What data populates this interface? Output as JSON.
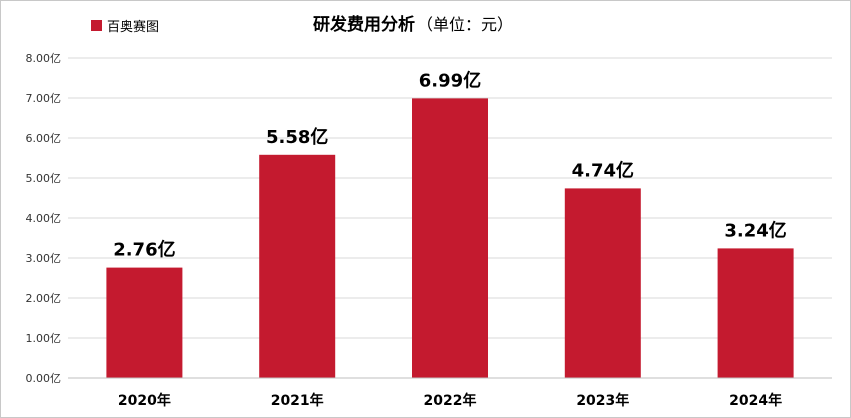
{
  "chart_data": {
    "type": "bar",
    "title": "研发费用分析",
    "title_unit": "（单位：元）",
    "legend": {
      "label": "百奥赛图",
      "position": "top-left"
    },
    "categories": [
      "2020年",
      "2021年",
      "2022年",
      "2023年",
      "2024年"
    ],
    "series": [
      {
        "name": "百奥赛图",
        "values": [
          2.76,
          5.58,
          6.99,
          4.74,
          3.24
        ],
        "data_labels": [
          "2.76亿",
          "5.58亿",
          "6.99亿",
          "4.74亿",
          "3.24亿"
        ],
        "color": "#c41a2f"
      }
    ],
    "y_ticks": [
      "0.00亿",
      "1.00亿",
      "2.00亿",
      "3.00亿",
      "4.00亿",
      "5.00亿",
      "6.00亿",
      "7.00亿",
      "8.00亿"
    ],
    "ylim": [
      0,
      8
    ],
    "grid": true,
    "gridline_color": "#d9d9d9"
  }
}
